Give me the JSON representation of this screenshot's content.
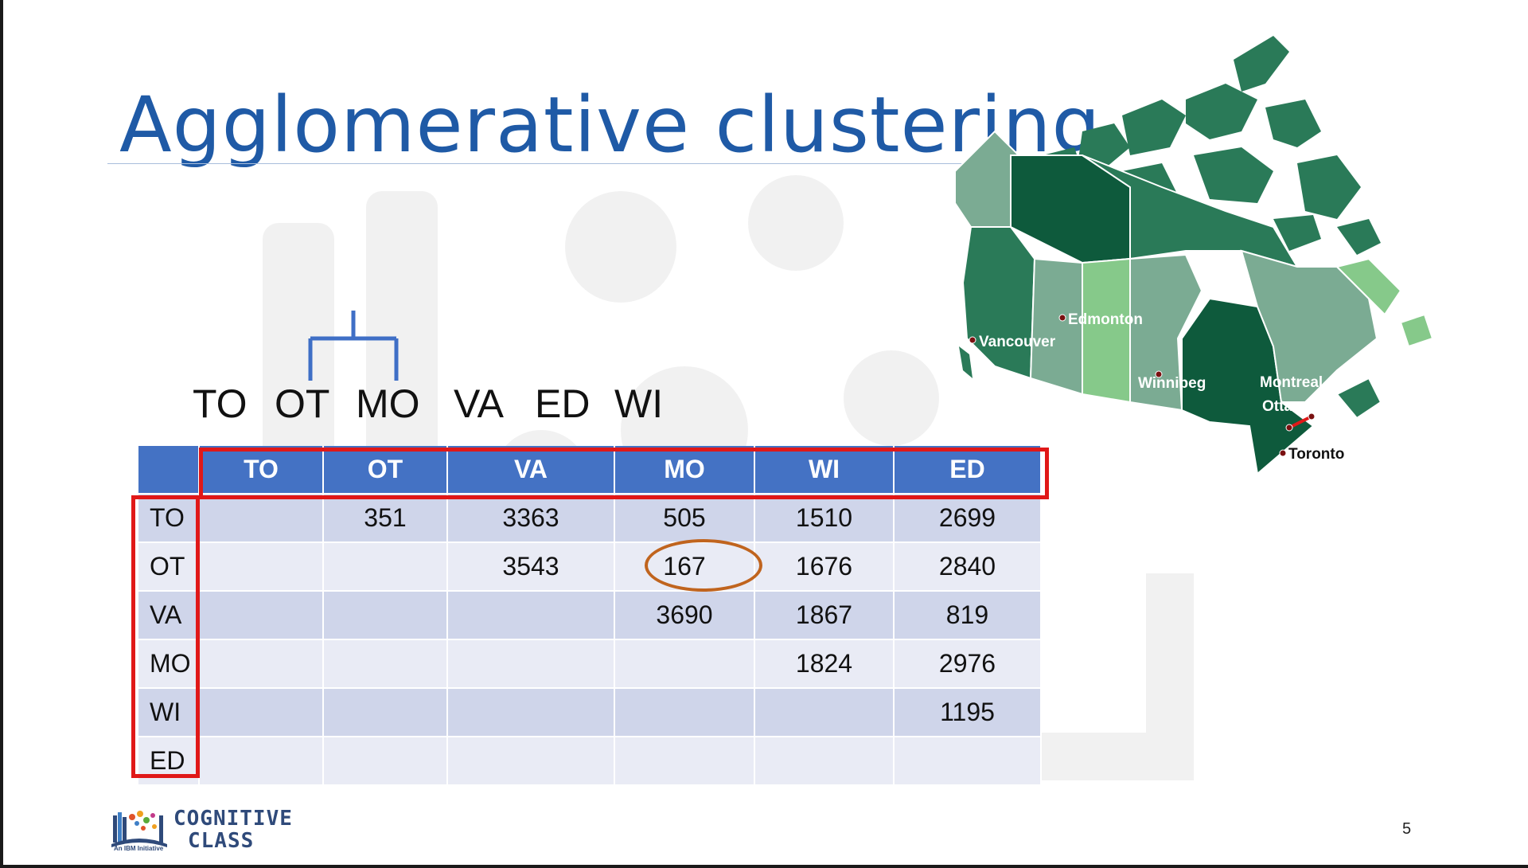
{
  "slide": {
    "title": "Agglomerative clustering",
    "page_number": "5"
  },
  "dendrogram": {
    "leaf_labels": [
      "TO",
      "OT",
      "MO",
      "VA",
      "ED",
      "WI"
    ],
    "merged_pair": [
      "OT",
      "MO"
    ]
  },
  "distance_table": {
    "columns": [
      "TO",
      "OT",
      "VA",
      "MO",
      "WI",
      "ED"
    ],
    "rows": [
      {
        "label": "TO",
        "cells": [
          "",
          "351",
          "3363",
          "505",
          "1510",
          "2699"
        ]
      },
      {
        "label": "OT",
        "cells": [
          "",
          "",
          "3543",
          "167",
          "1676",
          "2840"
        ]
      },
      {
        "label": "VA",
        "cells": [
          "",
          "",
          "",
          "3690",
          "1867",
          "819"
        ]
      },
      {
        "label": "MO",
        "cells": [
          "",
          "",
          "",
          "",
          "1824",
          "2976"
        ]
      },
      {
        "label": "WI",
        "cells": [
          "",
          "",
          "",
          "",
          "",
          "1195"
        ]
      },
      {
        "label": "ED",
        "cells": [
          "",
          "",
          "",
          "",
          "",
          ""
        ]
      }
    ],
    "highlighted_value": "167",
    "header_color": "#4472c4",
    "highlight_box_color": "#e01818",
    "circle_color": "#c0641e"
  },
  "map": {
    "cities": {
      "edmonton": "Edmonton",
      "vancouver": "Vancouver",
      "winnipeg": "Winnipeg",
      "montreal": "Montreal",
      "ottawa": "Ottawa",
      "toronto": "Toronto"
    },
    "colors": {
      "dark": "#0e5a3c",
      "medium": "#2a7a58",
      "light": "#7bab93",
      "lighter": "#86c98a"
    }
  },
  "logo": {
    "line1": "COGNITIVE",
    "line2": "CLASS",
    "tagline": "An IBM Initiative",
    "icon": "bookshelf-icon"
  }
}
